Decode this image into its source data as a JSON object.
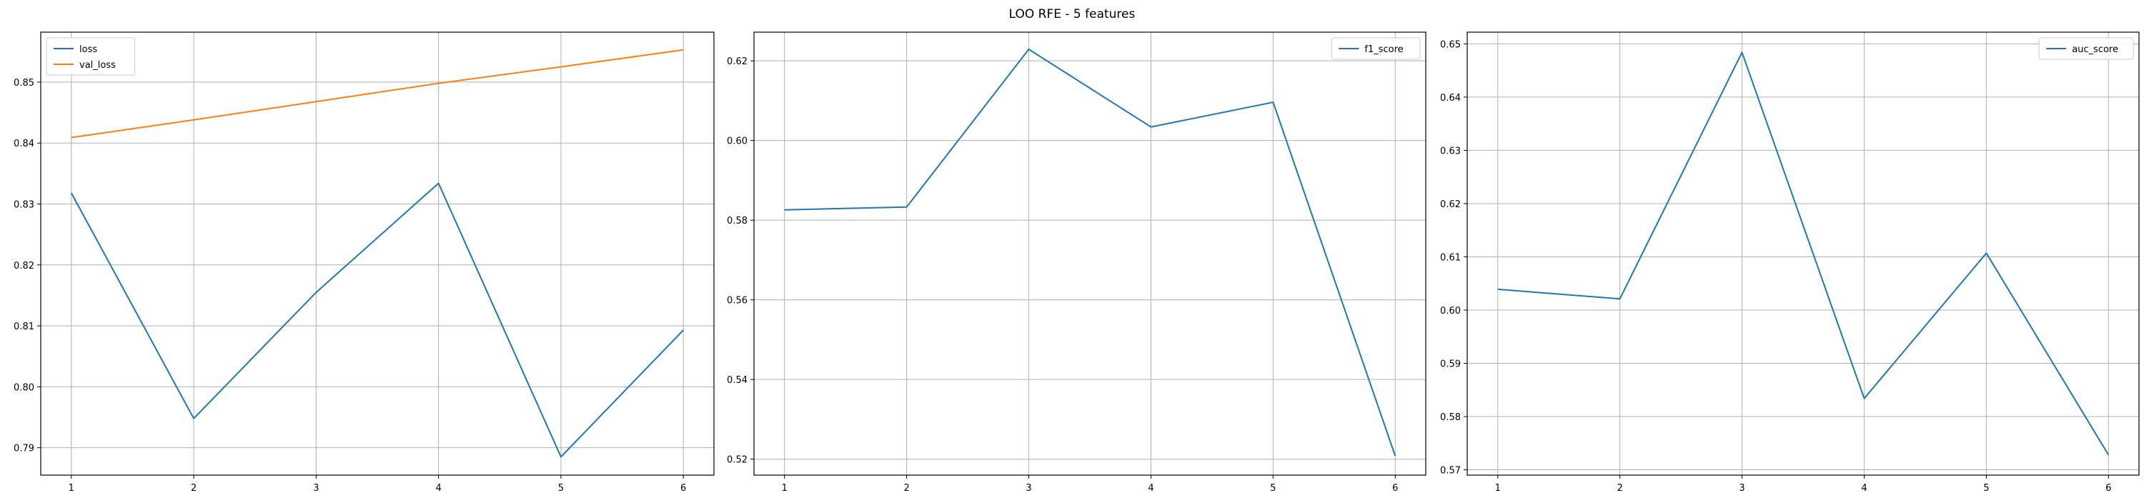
{
  "figure": {
    "title": "LOO RFE - 5 features"
  },
  "chart_data": [
    {
      "type": "line",
      "title": "",
      "xlabel": "",
      "ylabel": "",
      "x": [
        1,
        2,
        3,
        4,
        5,
        6
      ],
      "xticks": [
        1,
        2,
        3,
        4,
        5,
        6
      ],
      "yticks": [
        0.79,
        0.8,
        0.81,
        0.82,
        0.83,
        0.84,
        0.85
      ],
      "ylim": [
        0.7855,
        0.8582
      ],
      "grid": true,
      "legend_position": "top-left",
      "series": [
        {
          "name": "loss",
          "color": "#1f77b4",
          "values": [
            0.8318,
            0.7948,
            0.8155,
            0.8334,
            0.7885,
            0.8093
          ]
        },
        {
          "name": "val_loss",
          "color": "#ff7f0e",
          "values": [
            0.8409,
            0.8438,
            0.8468,
            0.8498,
            0.8525,
            0.8553
          ]
        }
      ]
    },
    {
      "type": "line",
      "title": "",
      "xlabel": "",
      "ylabel": "",
      "x": [
        1,
        2,
        3,
        4,
        5,
        6
      ],
      "xticks": [
        1,
        2,
        3,
        4,
        5,
        6
      ],
      "yticks": [
        0.52,
        0.54,
        0.56,
        0.58,
        0.6,
        0.62
      ],
      "ylim": [
        0.516,
        0.6272
      ],
      "grid": true,
      "legend_position": "top-right",
      "series": [
        {
          "name": "f1_score",
          "color": "#1f77b4",
          "values": [
            0.5826,
            0.5833,
            0.6229,
            0.6034,
            0.6096,
            0.5208
          ]
        }
      ]
    },
    {
      "type": "line",
      "title": "",
      "xlabel": "",
      "ylabel": "",
      "x": [
        1,
        2,
        3,
        4,
        5,
        6
      ],
      "xticks": [
        1,
        2,
        3,
        4,
        5,
        6
      ],
      "yticks": [
        0.57,
        0.58,
        0.59,
        0.6,
        0.61,
        0.62,
        0.63,
        0.64,
        0.65
      ],
      "ylim": [
        0.569,
        0.6522
      ],
      "grid": true,
      "legend_position": "top-right",
      "series": [
        {
          "name": "auc_score",
          "color": "#1f77b4",
          "values": [
            0.6039,
            0.6021,
            0.6484,
            0.5834,
            0.6107,
            0.5728
          ]
        }
      ]
    }
  ]
}
